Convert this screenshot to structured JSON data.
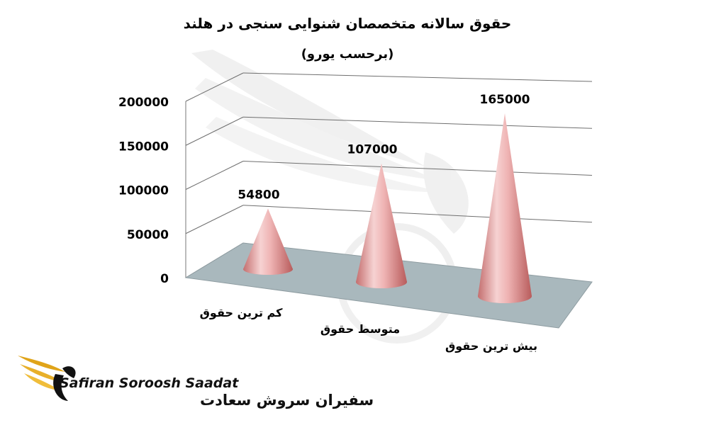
{
  "chart_data": {
    "type": "bar",
    "title": "حقوق سالانه متخصصان شنوایی سنجی در هلند",
    "subtitle": "(برحسب یورو)",
    "categories": [
      "کم ترین حقوق",
      "متوسط حقوق",
      "بیش ترین حقوق"
    ],
    "values": [
      54800,
      107000,
      165000
    ],
    "data_labels": [
      "54800",
      "107000",
      "165000"
    ],
    "yticks": [
      "0",
      "50000",
      "100000",
      "150000",
      "200000"
    ],
    "ylim": [
      0,
      200000
    ],
    "grid": true,
    "legend": "none",
    "colors": {
      "cone": "#e8a2a2",
      "floor": "#a9b8bd",
      "grid": "#6f6f6f",
      "watermark": "#ececec"
    }
  },
  "brand": {
    "name_en": "Safiran Soroosh Saadat",
    "name_fa": "سفیران سروش سعادت",
    "logo_icon": "gold-wing-logo-icon",
    "colors": {
      "gold": "#e0a419",
      "black": "#111111"
    }
  }
}
